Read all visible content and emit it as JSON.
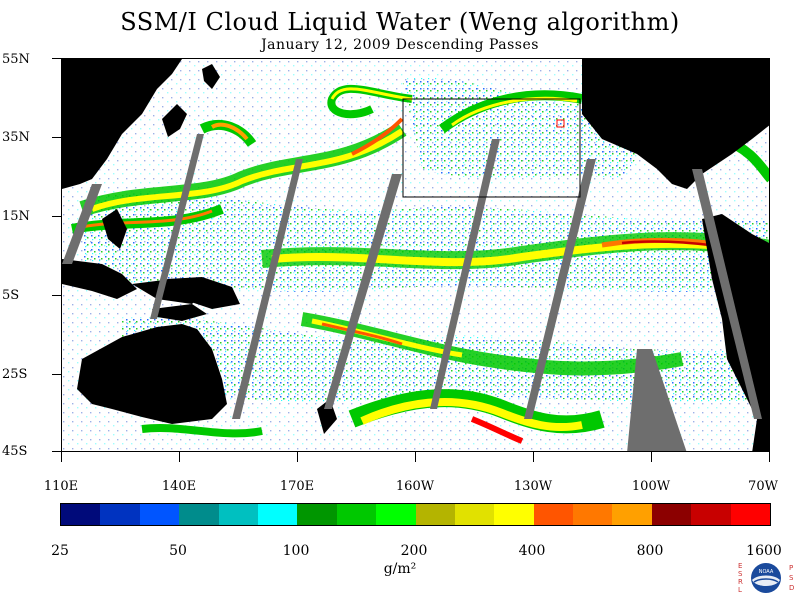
{
  "title": "SSM/I Cloud Liquid Water (Weng algorithm)",
  "subtitle": "January 12, 2009  Descending Passes",
  "lat_labels": [
    "55N",
    "35N",
    "15N",
    "5S",
    "25S",
    "45S"
  ],
  "lon_labels": [
    "110E",
    "140E",
    "170E",
    "160W",
    "130W",
    "100W",
    "70W"
  ],
  "colorbar": {
    "colors": [
      "#000a7a",
      "#0033c0",
      "#0055ff",
      "#008c8c",
      "#00c0c0",
      "#00ffff",
      "#009600",
      "#00c800",
      "#00ff00",
      "#b4b400",
      "#e1e100",
      "#ffff00",
      "#ff5500",
      "#ff7800",
      "#ffa000",
      "#8c0000",
      "#c80000",
      "#ff0000"
    ],
    "tick_labels": [
      "25",
      "50",
      "100",
      "200",
      "400",
      "800",
      "1600"
    ],
    "unit": "g/m²"
  },
  "logo": {
    "left_letters": [
      "E",
      "S",
      "R",
      "L"
    ],
    "right_letters": [
      "P",
      "S",
      "D"
    ],
    "badge": "NOAA"
  },
  "colors": {
    "land": "#000000",
    "missing_data": "#6e6e6e",
    "background": "#ffffff",
    "box_outline": "#000000",
    "marker": "#ff0000"
  }
}
